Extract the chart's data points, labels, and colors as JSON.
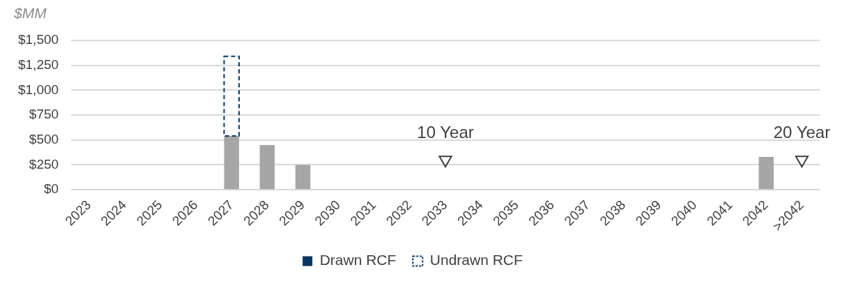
{
  "chart_data": {
    "type": "bar",
    "stacked": true,
    "ylabel": "$MM",
    "categories": [
      "2023",
      "2024",
      "2025",
      "2026",
      "2027",
      "2028",
      "2029",
      "2030",
      "2031",
      "2032",
      "2033",
      "2034",
      "2035",
      "2036",
      "2037",
      "2038",
      "2039",
      "2040",
      "2041",
      "2042",
      ">2042"
    ],
    "series": [
      {
        "color": "#a6a6a6",
        "values": [
          null,
          null,
          null,
          null,
          540,
          450,
          250,
          null,
          null,
          null,
          null,
          null,
          null,
          null,
          null,
          null,
          null,
          null,
          null,
          330,
          null
        ]
      },
      {
        "name": "Drawn RCF",
        "color": "#073763",
        "values": [
          null,
          null,
          null,
          null,
          null,
          null,
          null,
          null,
          null,
          null,
          null,
          null,
          null,
          null,
          null,
          null,
          null,
          null,
          null,
          null,
          null
        ]
      },
      {
        "name": "Undrawn RCF",
        "color": "#073763",
        "line_style": "dashed",
        "values": [
          null,
          null,
          null,
          null,
          800,
          null,
          null,
          null,
          null,
          null,
          null,
          null,
          null,
          null,
          null,
          null,
          null,
          null,
          null,
          null,
          null
        ]
      },
      {
        "type": "scatter",
        "color": "#404040",
        "marker": "triangle",
        "values": [
          null,
          null,
          null,
          null,
          null,
          null,
          null,
          null,
          null,
          null,
          300,
          null,
          null,
          null,
          null,
          null,
          null,
          null,
          null,
          null,
          300
        ]
      }
    ],
    "ylim": [
      0,
      1500
    ],
    "yticks": [
      {
        "value": 0,
        "label": "$0"
      },
      {
        "value": 250,
        "label": "$250"
      },
      {
        "value": 500,
        "label": "$500"
      },
      {
        "value": 750,
        "label": "$750"
      },
      {
        "value": 1000,
        "label": "$1,000"
      },
      {
        "value": 1250,
        "label": "$1,250"
      },
      {
        "value": 1500,
        "label": "$1,500"
      }
    ],
    "grid": "y",
    "legend": "bottom",
    "annotations": [
      {
        "text": "10 Year",
        "x": "2033",
        "y": 300
      },
      {
        "text": "20 Year",
        "x": ">2042",
        "y": 300
      }
    ]
  }
}
